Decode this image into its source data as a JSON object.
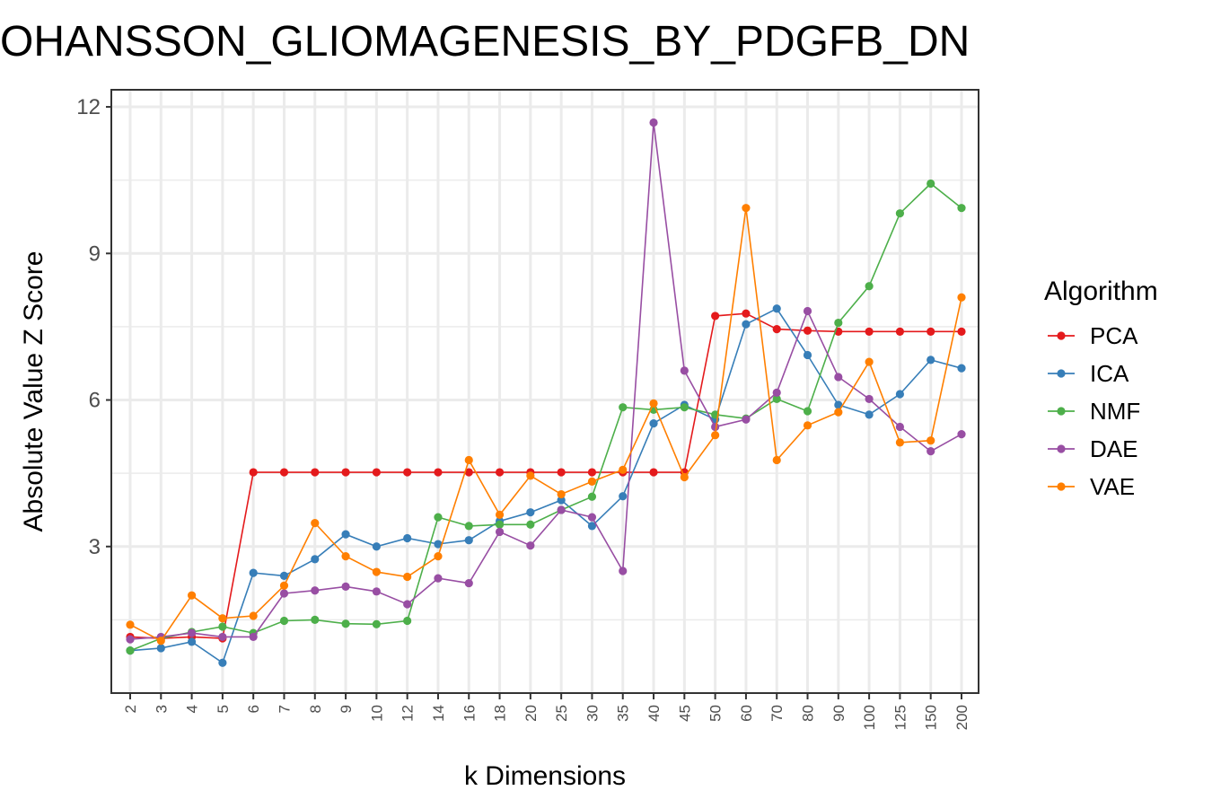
{
  "chart_data": {
    "type": "line",
    "title": "JOHANSSON_GLIOMAGENESIS_BY_PDGFB_DN",
    "xlabel": "k Dimensions",
    "ylabel": "Absolute Value Z Score",
    "categories": [
      "2",
      "3",
      "4",
      "5",
      "6",
      "7",
      "8",
      "9",
      "10",
      "12",
      "14",
      "16",
      "18",
      "20",
      "25",
      "30",
      "35",
      "40",
      "45",
      "50",
      "60",
      "70",
      "80",
      "90",
      "100",
      "125",
      "150",
      "200"
    ],
    "ylim": [
      0,
      12.35
    ],
    "yticks": [
      3,
      6,
      9,
      12
    ],
    "grid": true,
    "legend": {
      "title": "Algorithm",
      "position": "right"
    },
    "series": [
      {
        "name": "PCA",
        "color": "#e41a1c",
        "values": [
          1.15,
          1.12,
          1.15,
          1.12,
          4.52,
          4.52,
          4.52,
          4.52,
          4.52,
          4.52,
          4.52,
          4.52,
          4.52,
          4.52,
          4.52,
          4.52,
          4.52,
          4.52,
          4.52,
          7.72,
          7.77,
          7.45,
          7.42,
          7.4,
          7.4,
          7.4,
          7.4,
          7.4
        ]
      },
      {
        "name": "ICA",
        "color": "#377eb8",
        "values": [
          0.87,
          0.92,
          1.05,
          0.62,
          2.46,
          2.4,
          2.74,
          3.25,
          3.0,
          3.17,
          3.05,
          3.13,
          3.52,
          3.7,
          3.95,
          3.42,
          4.03,
          5.52,
          5.9,
          5.6,
          7.55,
          7.87,
          6.92,
          5.9,
          5.7,
          6.12,
          6.82,
          6.65
        ]
      },
      {
        "name": "NMF",
        "color": "#4daf4a",
        "values": [
          0.87,
          1.12,
          1.25,
          1.36,
          1.23,
          1.48,
          1.5,
          1.42,
          1.41,
          1.48,
          3.6,
          3.42,
          3.45,
          3.45,
          3.75,
          4.02,
          5.85,
          5.8,
          5.85,
          5.7,
          5.62,
          6.02,
          5.77,
          7.58,
          8.33,
          9.82,
          10.43,
          9.93
        ]
      },
      {
        "name": "DAE",
        "color": "#984ea3",
        "values": [
          1.1,
          1.15,
          1.23,
          1.15,
          1.15,
          2.04,
          2.1,
          2.18,
          2.08,
          1.82,
          2.35,
          2.25,
          3.3,
          3.02,
          3.75,
          3.6,
          2.5,
          11.68,
          6.6,
          5.45,
          5.6,
          6.15,
          7.82,
          6.47,
          6.02,
          5.45,
          4.95,
          5.3
        ]
      },
      {
        "name": "VAE",
        "color": "#ff7f00",
        "values": [
          1.4,
          1.07,
          2.0,
          1.53,
          1.58,
          2.2,
          3.48,
          2.8,
          2.48,
          2.38,
          2.8,
          4.77,
          3.65,
          4.45,
          4.07,
          4.33,
          4.57,
          5.93,
          4.42,
          5.28,
          9.93,
          4.77,
          5.48,
          5.75,
          6.78,
          5.13,
          5.17,
          8.1
        ]
      }
    ]
  }
}
